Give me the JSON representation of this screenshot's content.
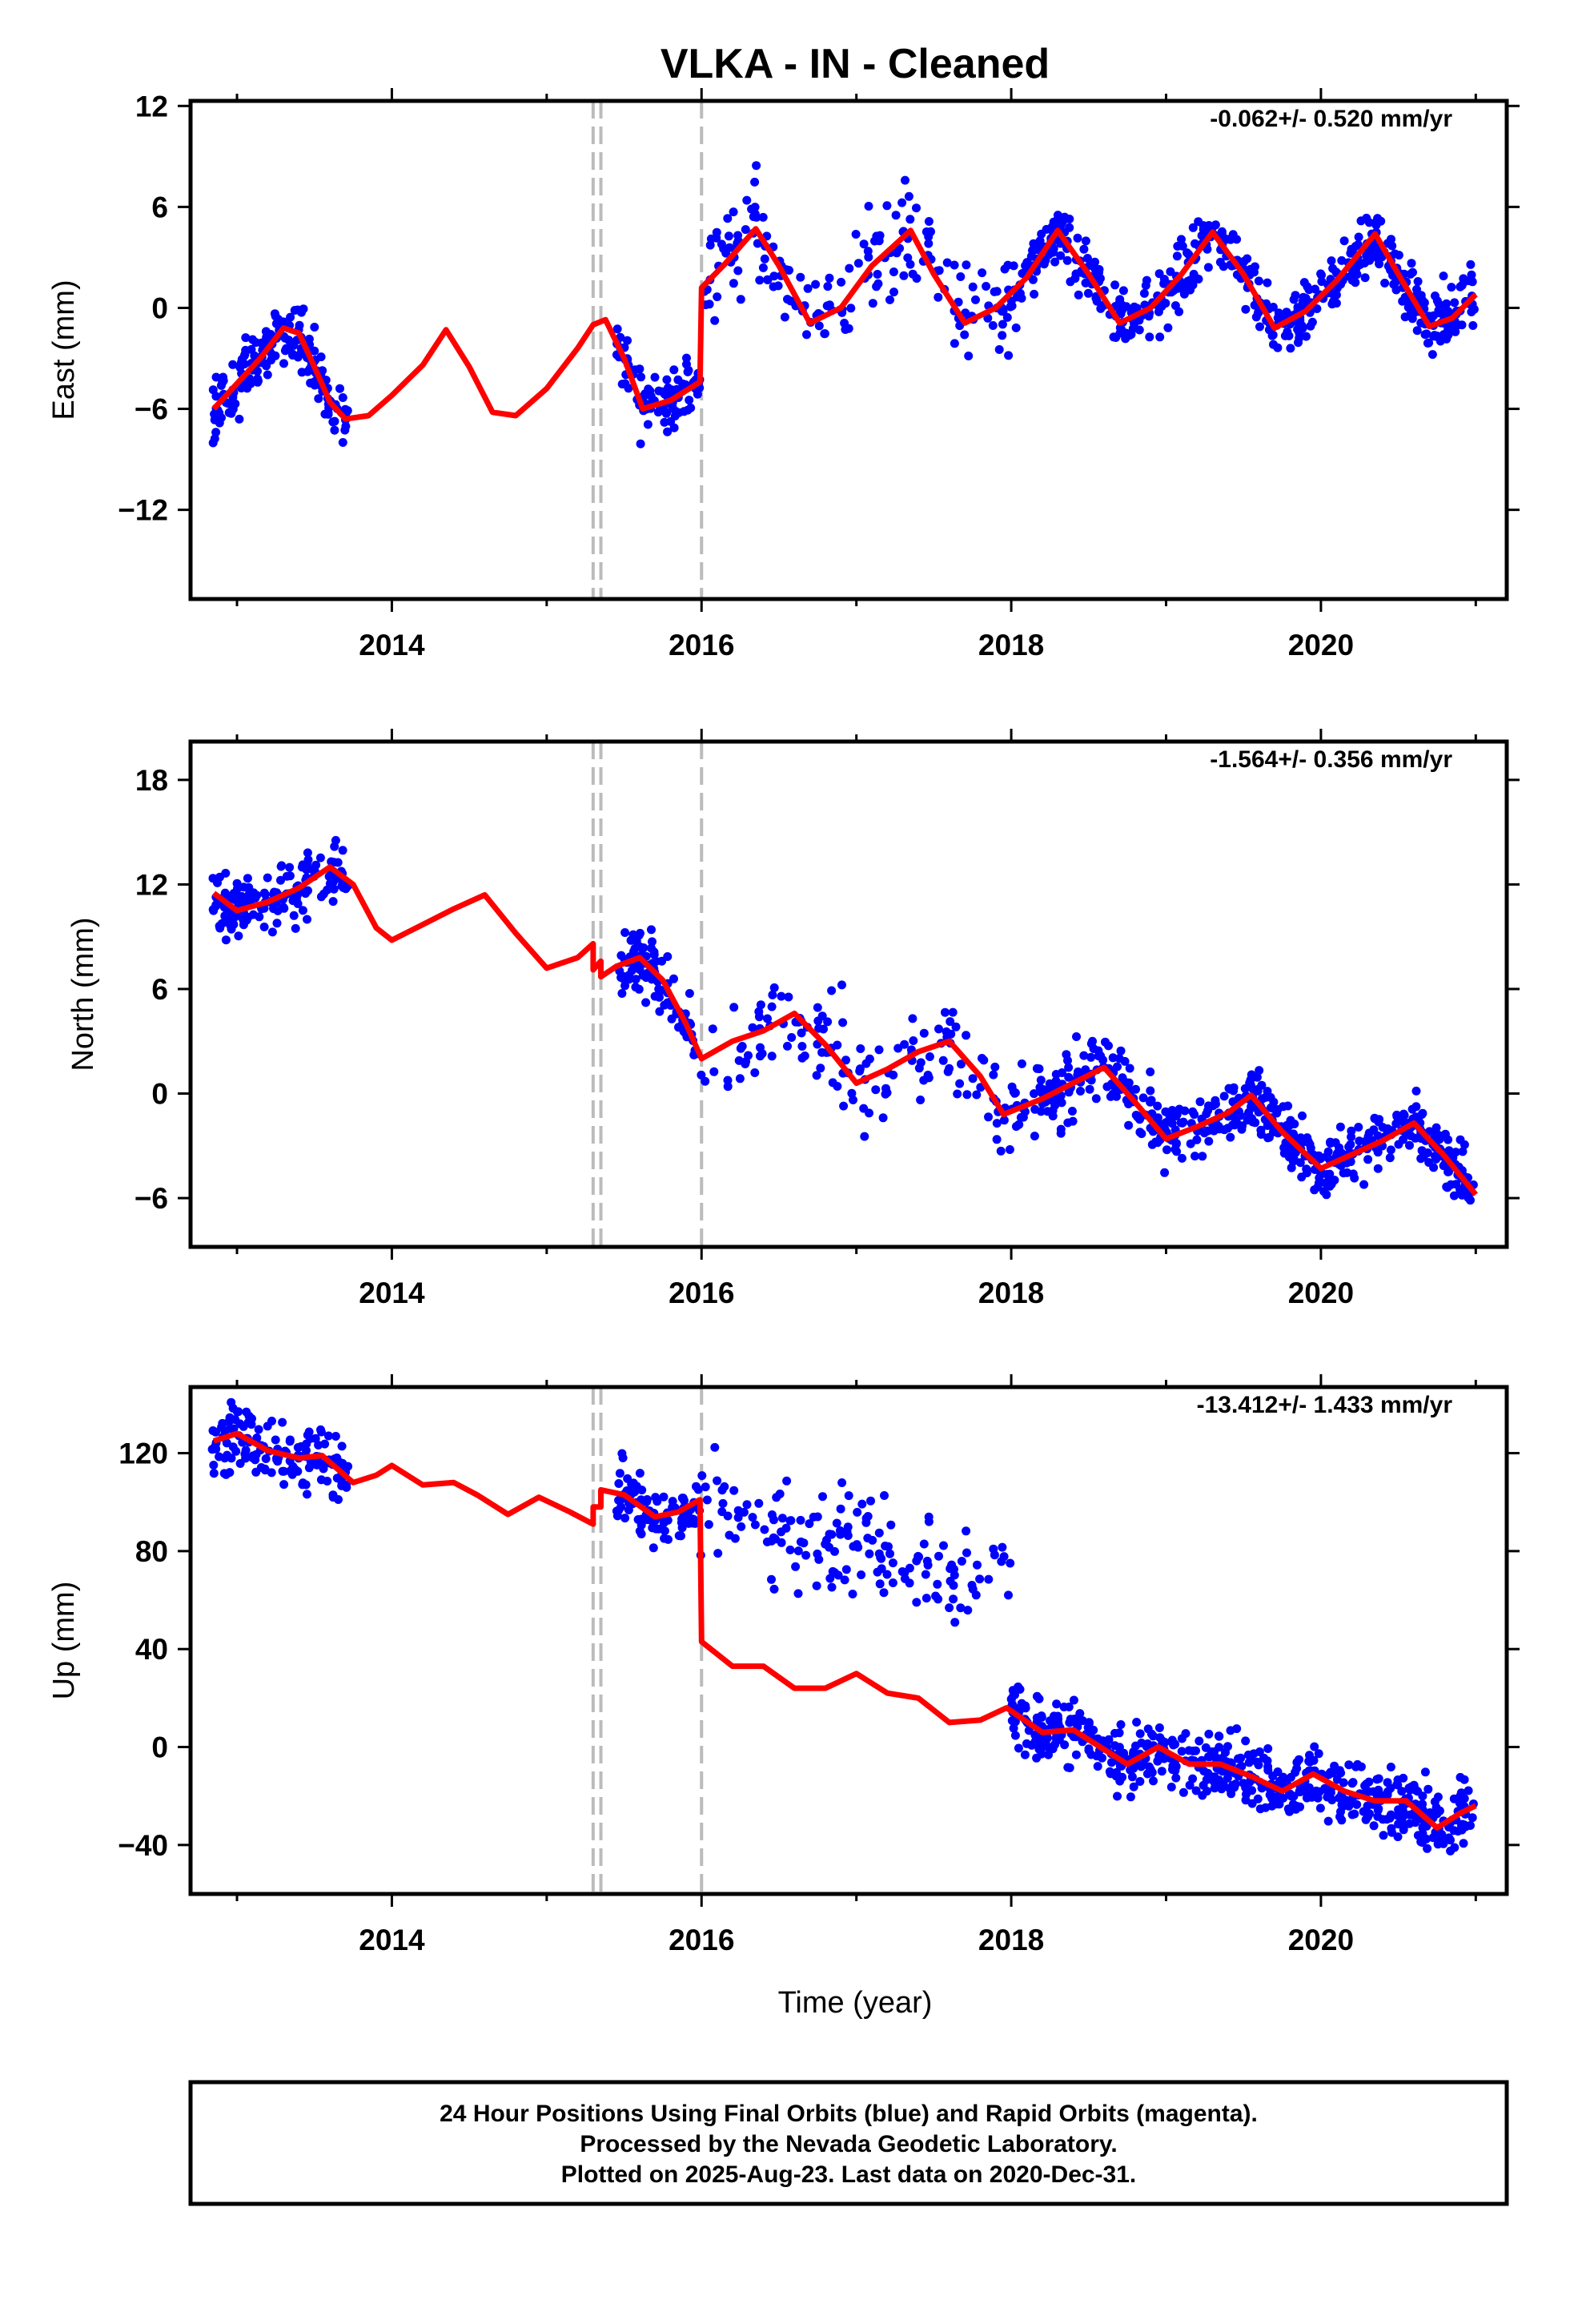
{
  "title": "VLKA  - IN - Cleaned",
  "xlabel": "Time (year)",
  "footer": {
    "line1": "24 Hour Positions Using Final Orbits (blue) and Rapid Orbits (magenta).",
    "line2": "Processed by the Nevada Geodetic Laboratory.",
    "line3": "Plotted on 2025-Aug-23. Last data on 2020-Dec-31."
  },
  "colors": {
    "data": "#0000ff",
    "model": "#ff0000",
    "event_lines": "#bbbbbb",
    "frame": "#000000"
  },
  "chart_data": [
    {
      "type": "scatter",
      "ylabel": "East (mm)",
      "rate_label": "-0.062+/- 0.520 mm/yr",
      "xlim": [
        2012.7,
        2021.2
      ],
      "ylim": [
        -17.3,
        12.3
      ],
      "x_ticks": [
        2014,
        2016,
        2018,
        2020
      ],
      "x_tick_labels": [
        "2014",
        "2016",
        "2018",
        "2020"
      ],
      "y_ticks": [
        -12,
        -6,
        0,
        6,
        12
      ],
      "y_tick_labels": [
        "−12",
        "−6",
        "0",
        "6",
        "12"
      ],
      "event_lines": [
        2015.3,
        2015.35,
        2016.0
      ],
      "series": [
        {
          "values": [
            {
              "x": 2012.85,
              "y": -6.0
            },
            {
              "x": 2013.0,
              "y": -4.5
            },
            {
              "x": 2013.15,
              "y": -3.0
            },
            {
              "x": 2013.3,
              "y": -1.2
            },
            {
              "x": 2013.4,
              "y": -1.5
            },
            {
              "x": 2013.5,
              "y": -3.5
            },
            {
              "x": 2013.6,
              "y": -5.6
            },
            {
              "x": 2013.7,
              "y": -6.6
            },
            {
              "x": 2013.85,
              "y": -6.4
            },
            {
              "x": 2014.0,
              "y": -5.2
            },
            {
              "x": 2014.2,
              "y": -3.4
            },
            {
              "x": 2014.35,
              "y": -1.3
            },
            {
              "x": 2014.5,
              "y": -3.5
            },
            {
              "x": 2014.65,
              "y": -6.2
            },
            {
              "x": 2014.8,
              "y": -6.4
            },
            {
              "x": 2015.0,
              "y": -4.8
            },
            {
              "x": 2015.2,
              "y": -2.4
            },
            {
              "x": 2015.3,
              "y": -1.0
            },
            {
              "x": 2015.38,
              "y": -0.7
            },
            {
              "x": 2015.5,
              "y": -3.0
            },
            {
              "x": 2015.62,
              "y": -6.0
            },
            {
              "x": 2015.8,
              "y": -5.5
            },
            {
              "x": 2015.99,
              "y": -4.4
            },
            {
              "x": 2016.0,
              "y": 1.2
            },
            {
              "x": 2016.15,
              "y": 2.6
            },
            {
              "x": 2016.35,
              "y": 4.7
            },
            {
              "x": 2016.5,
              "y": 2.5
            },
            {
              "x": 2016.7,
              "y": -0.9
            },
            {
              "x": 2016.9,
              "y": 0.0
            },
            {
              "x": 2017.1,
              "y": 2.5
            },
            {
              "x": 2017.35,
              "y": 4.6
            },
            {
              "x": 2017.5,
              "y": 2.0
            },
            {
              "x": 2017.7,
              "y": -0.9
            },
            {
              "x": 2017.9,
              "y": 0.0
            },
            {
              "x": 2018.1,
              "y": 1.8
            },
            {
              "x": 2018.3,
              "y": 4.6
            },
            {
              "x": 2018.5,
              "y": 2.0
            },
            {
              "x": 2018.7,
              "y": -0.9
            },
            {
              "x": 2018.9,
              "y": 0.0
            },
            {
              "x": 2019.1,
              "y": 2.0
            },
            {
              "x": 2019.3,
              "y": 4.5
            },
            {
              "x": 2019.5,
              "y": 2.0
            },
            {
              "x": 2019.7,
              "y": -1.2
            },
            {
              "x": 2019.9,
              "y": -0.2
            },
            {
              "x": 2020.1,
              "y": 1.6
            },
            {
              "x": 2020.35,
              "y": 4.4
            },
            {
              "x": 2020.5,
              "y": 2.0
            },
            {
              "x": 2020.7,
              "y": -1.1
            },
            {
              "x": 2020.85,
              "y": -0.6
            },
            {
              "x": 2021.0,
              "y": 0.8
            }
          ]
        }
      ]
    },
    {
      "type": "scatter",
      "ylabel": "North (mm)",
      "rate_label": "-1.564+/- 0.356 mm/yr",
      "xlim": [
        2012.7,
        2021.2
      ],
      "ylim": [
        -8.8,
        20.2
      ],
      "x_ticks": [
        2014,
        2016,
        2018,
        2020
      ],
      "x_tick_labels": [
        "2014",
        "2016",
        "2018",
        "2020"
      ],
      "y_ticks": [
        -6,
        0,
        6,
        12,
        18
      ],
      "y_tick_labels": [
        "−6",
        "0",
        "6",
        "12",
        "18"
      ],
      "event_lines": [
        2015.3,
        2015.35,
        2016.0
      ],
      "series": [
        {
          "values": [
            {
              "x": 2012.85,
              "y": 11.5
            },
            {
              "x": 2013.0,
              "y": 10.5
            },
            {
              "x": 2013.2,
              "y": 11.0
            },
            {
              "x": 2013.4,
              "y": 11.8
            },
            {
              "x": 2013.6,
              "y": 13.0
            },
            {
              "x": 2013.75,
              "y": 12.0
            },
            {
              "x": 2013.9,
              "y": 9.5
            },
            {
              "x": 2014.0,
              "y": 8.8
            },
            {
              "x": 2014.2,
              "y": 9.7
            },
            {
              "x": 2014.4,
              "y": 10.6
            },
            {
              "x": 2014.6,
              "y": 11.4
            },
            {
              "x": 2014.8,
              "y": 9.2
            },
            {
              "x": 2015.0,
              "y": 7.2
            },
            {
              "x": 2015.2,
              "y": 7.8
            },
            {
              "x": 2015.3,
              "y": 8.6
            },
            {
              "x": 2015.3,
              "y": 7.1
            },
            {
              "x": 2015.35,
              "y": 7.6
            },
            {
              "x": 2015.35,
              "y": 6.7
            },
            {
              "x": 2015.45,
              "y": 7.3
            },
            {
              "x": 2015.6,
              "y": 7.8
            },
            {
              "x": 2015.75,
              "y": 6.5
            },
            {
              "x": 2015.9,
              "y": 4.0
            },
            {
              "x": 2016.0,
              "y": 2.0
            },
            {
              "x": 2016.2,
              "y": 3.0
            },
            {
              "x": 2016.4,
              "y": 3.6
            },
            {
              "x": 2016.6,
              "y": 4.6
            },
            {
              "x": 2016.8,
              "y": 2.8
            },
            {
              "x": 2017.0,
              "y": 0.6
            },
            {
              "x": 2017.2,
              "y": 1.4
            },
            {
              "x": 2017.4,
              "y": 2.4
            },
            {
              "x": 2017.6,
              "y": 3.0
            },
            {
              "x": 2017.8,
              "y": 1.0
            },
            {
              "x": 2017.95,
              "y": -1.2
            },
            {
              "x": 2018.2,
              "y": -0.3
            },
            {
              "x": 2018.4,
              "y": 0.6
            },
            {
              "x": 2018.6,
              "y": 1.5
            },
            {
              "x": 2018.8,
              "y": -0.5
            },
            {
              "x": 2019.0,
              "y": -2.6
            },
            {
              "x": 2019.2,
              "y": -1.9
            },
            {
              "x": 2019.4,
              "y": -1.1
            },
            {
              "x": 2019.55,
              "y": -0.1
            },
            {
              "x": 2019.75,
              "y": -2.2
            },
            {
              "x": 2020.0,
              "y": -4.3
            },
            {
              "x": 2020.2,
              "y": -3.5
            },
            {
              "x": 2020.4,
              "y": -2.7
            },
            {
              "x": 2020.6,
              "y": -1.7
            },
            {
              "x": 2020.8,
              "y": -3.6
            },
            {
              "x": 2021.0,
              "y": -5.8
            }
          ]
        }
      ]
    },
    {
      "type": "scatter",
      "ylabel": "Up (mm)",
      "rate_label": "-13.412+/- 1.433 mm/yr",
      "xlim": [
        2012.7,
        2021.2
      ],
      "ylim": [
        -60,
        147
      ],
      "x_ticks": [
        2014,
        2016,
        2018,
        2020
      ],
      "x_tick_labels": [
        "2014",
        "2016",
        "2018",
        "2020"
      ],
      "y_ticks": [
        -40,
        0,
        40,
        80,
        120
      ],
      "y_tick_labels": [
        "−40",
        "0",
        "40",
        "80",
        "120"
      ],
      "event_lines": [
        2015.3,
        2015.35,
        2016.0
      ],
      "series": [
        {
          "values": [
            {
              "x": 2012.85,
              "y": 125
            },
            {
              "x": 2013.0,
              "y": 128
            },
            {
              "x": 2013.2,
              "y": 121
            },
            {
              "x": 2013.4,
              "y": 118
            },
            {
              "x": 2013.55,
              "y": 119
            },
            {
              "x": 2013.75,
              "y": 108
            },
            {
              "x": 2013.9,
              "y": 111
            },
            {
              "x": 2014.0,
              "y": 115
            },
            {
              "x": 2014.2,
              "y": 107
            },
            {
              "x": 2014.4,
              "y": 108
            },
            {
              "x": 2014.55,
              "y": 103
            },
            {
              "x": 2014.75,
              "y": 95
            },
            {
              "x": 2014.95,
              "y": 102
            },
            {
              "x": 2015.15,
              "y": 96
            },
            {
              "x": 2015.3,
              "y": 91
            },
            {
              "x": 2015.3,
              "y": 98
            },
            {
              "x": 2015.35,
              "y": 98
            },
            {
              "x": 2015.35,
              "y": 105
            },
            {
              "x": 2015.5,
              "y": 103
            },
            {
              "x": 2015.7,
              "y": 94
            },
            {
              "x": 2015.85,
              "y": 96
            },
            {
              "x": 2015.99,
              "y": 101
            },
            {
              "x": 2016.0,
              "y": 43
            },
            {
              "x": 2016.2,
              "y": 33
            },
            {
              "x": 2016.4,
              "y": 33
            },
            {
              "x": 2016.6,
              "y": 24
            },
            {
              "x": 2016.8,
              "y": 24
            },
            {
              "x": 2017.0,
              "y": 30
            },
            {
              "x": 2017.2,
              "y": 22
            },
            {
              "x": 2017.4,
              "y": 20
            },
            {
              "x": 2017.6,
              "y": 10
            },
            {
              "x": 2017.8,
              "y": 11
            },
            {
              "x": 2017.97,
              "y": 16
            },
            {
              "x": 2018.2,
              "y": 6
            },
            {
              "x": 2018.4,
              "y": 7
            },
            {
              "x": 2018.55,
              "y": 1
            },
            {
              "x": 2018.75,
              "y": -7
            },
            {
              "x": 2018.95,
              "y": 0
            },
            {
              "x": 2019.15,
              "y": -7
            },
            {
              "x": 2019.35,
              "y": -7
            },
            {
              "x": 2019.55,
              "y": -12
            },
            {
              "x": 2019.75,
              "y": -18
            },
            {
              "x": 2019.95,
              "y": -11
            },
            {
              "x": 2020.15,
              "y": -18
            },
            {
              "x": 2020.35,
              "y": -22
            },
            {
              "x": 2020.55,
              "y": -22
            },
            {
              "x": 2020.75,
              "y": -33
            },
            {
              "x": 2020.9,
              "y": -27
            },
            {
              "x": 2021.0,
              "y": -24
            }
          ]
        }
      ]
    }
  ]
}
